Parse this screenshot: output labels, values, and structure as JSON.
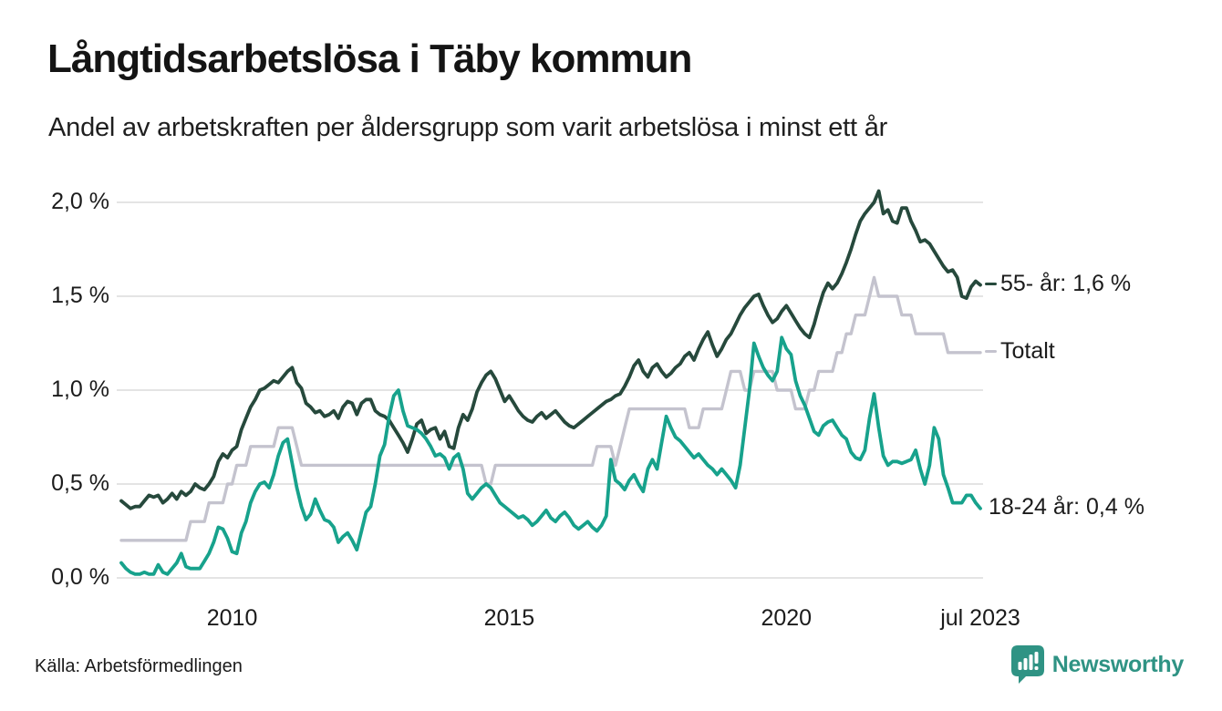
{
  "header": {
    "title": "Långtidsarbetslösa i Täby kommun",
    "subtitle": "Andel av arbetskraften per åldersgrupp som varit arbetslösa i minst ett år"
  },
  "footer": {
    "source": "Källa: Arbetsförmedlingen",
    "brand": "Newsworthy",
    "logo_icon": "speech-bubble-bar-chart"
  },
  "colors": {
    "series_55": "#26493c",
    "series_total": "#c4c3ce",
    "series_18_24": "#17a28c",
    "gridline": "#e4e4e4",
    "text": "#1b1b1b",
    "brand_teal": "#2f9384"
  },
  "chart_data": {
    "type": "line",
    "title": "Långtidsarbetslösa i Täby kommun",
    "subtitle": "Andel av arbetskraften per åldersgrupp som varit arbetslösa i minst ett år",
    "x_start": "2008-01",
    "x_end": "2023-07",
    "x_freq": "monthly",
    "x_tick_labels": [
      "2010",
      "2015",
      "2020",
      "jul 2023"
    ],
    "x_tick_months": [
      24,
      84,
      144,
      186
    ],
    "y_tick_labels": [
      "0,0 %",
      "0,5 %",
      "1,0 %",
      "1,5 %",
      "2,0 %"
    ],
    "y_tick_values": [
      0,
      0.5,
      1.0,
      1.5,
      2.0
    ],
    "ylim": [
      0,
      2.1
    ],
    "grid": "horizontal",
    "legend_position": "right-end-annotations",
    "series": [
      {
        "name": "55- år",
        "color": "#26493c",
        "end_label": "55- år: 1,6 %",
        "end_value_text": "1,6 %",
        "annotation_dash": true,
        "values": [
          0.41,
          0.39,
          0.37,
          0.38,
          0.38,
          0.41,
          0.44,
          0.43,
          0.44,
          0.4,
          0.42,
          0.45,
          0.42,
          0.46,
          0.44,
          0.46,
          0.5,
          0.48,
          0.47,
          0.5,
          0.54,
          0.62,
          0.66,
          0.64,
          0.68,
          0.7,
          0.79,
          0.85,
          0.91,
          0.95,
          1.0,
          1.01,
          1.03,
          1.05,
          1.04,
          1.07,
          1.1,
          1.12,
          1.04,
          1.01,
          0.93,
          0.91,
          0.88,
          0.89,
          0.86,
          0.87,
          0.89,
          0.85,
          0.91,
          0.94,
          0.93,
          0.87,
          0.93,
          0.95,
          0.95,
          0.89,
          0.87,
          0.86,
          0.84,
          0.8,
          0.76,
          0.72,
          0.67,
          0.74,
          0.82,
          0.84,
          0.77,
          0.79,
          0.8,
          0.74,
          0.78,
          0.7,
          0.69,
          0.8,
          0.87,
          0.84,
          0.9,
          0.99,
          1.04,
          1.08,
          1.1,
          1.06,
          1.0,
          0.94,
          0.97,
          0.93,
          0.89,
          0.86,
          0.84,
          0.83,
          0.86,
          0.88,
          0.85,
          0.87,
          0.89,
          0.86,
          0.83,
          0.81,
          0.8,
          0.82,
          0.84,
          0.86,
          0.88,
          0.9,
          0.92,
          0.94,
          0.95,
          0.97,
          0.98,
          1.02,
          1.07,
          1.13,
          1.16,
          1.1,
          1.07,
          1.12,
          1.14,
          1.1,
          1.07,
          1.09,
          1.12,
          1.14,
          1.18,
          1.2,
          1.16,
          1.22,
          1.27,
          1.31,
          1.24,
          1.18,
          1.22,
          1.27,
          1.3,
          1.35,
          1.4,
          1.44,
          1.47,
          1.5,
          1.51,
          1.45,
          1.4,
          1.36,
          1.38,
          1.42,
          1.45,
          1.41,
          1.37,
          1.33,
          1.3,
          1.28,
          1.35,
          1.44,
          1.52,
          1.57,
          1.54,
          1.57,
          1.62,
          1.68,
          1.75,
          1.83,
          1.9,
          1.94,
          1.97,
          2.0,
          2.06,
          1.94,
          1.96,
          1.9,
          1.89,
          1.97,
          1.97,
          1.9,
          1.85,
          1.79,
          1.8,
          1.78,
          1.74,
          1.7,
          1.66,
          1.63,
          1.64,
          1.6,
          1.5,
          1.49,
          1.55,
          1.58,
          1.56
        ]
      },
      {
        "name": "Totalt",
        "color": "#c4c3ce",
        "end_label": "Totalt",
        "end_value_text": "",
        "annotation_dash": true,
        "values": [
          0.2,
          0.2,
          0.2,
          0.2,
          0.2,
          0.2,
          0.2,
          0.2,
          0.2,
          0.2,
          0.2,
          0.2,
          0.2,
          0.2,
          0.2,
          0.3,
          0.3,
          0.3,
          0.3,
          0.4,
          0.4,
          0.4,
          0.4,
          0.5,
          0.5,
          0.6,
          0.6,
          0.6,
          0.7,
          0.7,
          0.7,
          0.7,
          0.7,
          0.7,
          0.8,
          0.8,
          0.8,
          0.8,
          0.7,
          0.6,
          0.6,
          0.6,
          0.6,
          0.6,
          0.6,
          0.6,
          0.6,
          0.6,
          0.6,
          0.6,
          0.6,
          0.6,
          0.6,
          0.6,
          0.6,
          0.6,
          0.6,
          0.6,
          0.6,
          0.6,
          0.6,
          0.6,
          0.6,
          0.6,
          0.6,
          0.6,
          0.6,
          0.6,
          0.6,
          0.6,
          0.6,
          0.6,
          0.6,
          0.6,
          0.6,
          0.6,
          0.6,
          0.6,
          0.6,
          0.5,
          0.5,
          0.6,
          0.6,
          0.6,
          0.6,
          0.6,
          0.6,
          0.6,
          0.6,
          0.6,
          0.6,
          0.6,
          0.6,
          0.6,
          0.6,
          0.6,
          0.6,
          0.6,
          0.6,
          0.6,
          0.6,
          0.6,
          0.6,
          0.7,
          0.7,
          0.7,
          0.7,
          0.6,
          0.7,
          0.8,
          0.9,
          0.9,
          0.9,
          0.9,
          0.9,
          0.9,
          0.9,
          0.9,
          0.9,
          0.9,
          0.9,
          0.9,
          0.9,
          0.8,
          0.8,
          0.8,
          0.9,
          0.9,
          0.9,
          0.9,
          0.9,
          1.0,
          1.1,
          1.1,
          1.1,
          1.0,
          1.0,
          1.1,
          1.1,
          1.1,
          1.1,
          1.1,
          1.0,
          1.0,
          1.0,
          1.0,
          0.9,
          0.9,
          0.9,
          1.0,
          1.0,
          1.1,
          1.1,
          1.1,
          1.1,
          1.2,
          1.2,
          1.3,
          1.3,
          1.4,
          1.4,
          1.4,
          1.5,
          1.6,
          1.5,
          1.5,
          1.5,
          1.5,
          1.5,
          1.4,
          1.4,
          1.4,
          1.3,
          1.3,
          1.3,
          1.3,
          1.3,
          1.3,
          1.3,
          1.2,
          1.2,
          1.2,
          1.2,
          1.2,
          1.2,
          1.2,
          1.2
        ]
      },
      {
        "name": "18-24 år",
        "color": "#17a28c",
        "end_label": "18-24 år: 0,4 %",
        "end_value_text": "0,4 %",
        "annotation_dash": false,
        "values": [
          0.08,
          0.05,
          0.03,
          0.02,
          0.02,
          0.03,
          0.02,
          0.02,
          0.07,
          0.03,
          0.02,
          0.05,
          0.08,
          0.13,
          0.06,
          0.05,
          0.05,
          0.05,
          0.09,
          0.13,
          0.19,
          0.27,
          0.26,
          0.21,
          0.14,
          0.13,
          0.24,
          0.3,
          0.4,
          0.46,
          0.5,
          0.51,
          0.48,
          0.55,
          0.65,
          0.72,
          0.74,
          0.61,
          0.48,
          0.38,
          0.31,
          0.34,
          0.42,
          0.36,
          0.31,
          0.3,
          0.27,
          0.19,
          0.22,
          0.24,
          0.2,
          0.15,
          0.25,
          0.35,
          0.38,
          0.5,
          0.65,
          0.71,
          0.86,
          0.97,
          1.0,
          0.89,
          0.81,
          0.8,
          0.79,
          0.77,
          0.74,
          0.7,
          0.65,
          0.66,
          0.64,
          0.58,
          0.64,
          0.66,
          0.58,
          0.45,
          0.42,
          0.45,
          0.48,
          0.5,
          0.48,
          0.44,
          0.4,
          0.38,
          0.36,
          0.34,
          0.32,
          0.33,
          0.31,
          0.28,
          0.3,
          0.33,
          0.36,
          0.32,
          0.3,
          0.33,
          0.35,
          0.32,
          0.28,
          0.26,
          0.28,
          0.3,
          0.27,
          0.25,
          0.28,
          0.33,
          0.63,
          0.52,
          0.5,
          0.47,
          0.52,
          0.55,
          0.5,
          0.46,
          0.58,
          0.63,
          0.58,
          0.72,
          0.86,
          0.8,
          0.75,
          0.73,
          0.7,
          0.67,
          0.64,
          0.66,
          0.63,
          0.6,
          0.58,
          0.55,
          0.58,
          0.55,
          0.52,
          0.48,
          0.6,
          0.8,
          1.0,
          1.25,
          1.18,
          1.12,
          1.08,
          1.05,
          1.1,
          1.28,
          1.22,
          1.19,
          1.05,
          0.97,
          0.92,
          0.85,
          0.78,
          0.76,
          0.81,
          0.83,
          0.84,
          0.8,
          0.76,
          0.74,
          0.67,
          0.64,
          0.63,
          0.68,
          0.85,
          0.98,
          0.8,
          0.65,
          0.6,
          0.62,
          0.62,
          0.61,
          0.62,
          0.63,
          0.68,
          0.58,
          0.5,
          0.6,
          0.8,
          0.74,
          0.55,
          0.48,
          0.4,
          0.4,
          0.4,
          0.44,
          0.44,
          0.4,
          0.37
        ]
      }
    ]
  }
}
